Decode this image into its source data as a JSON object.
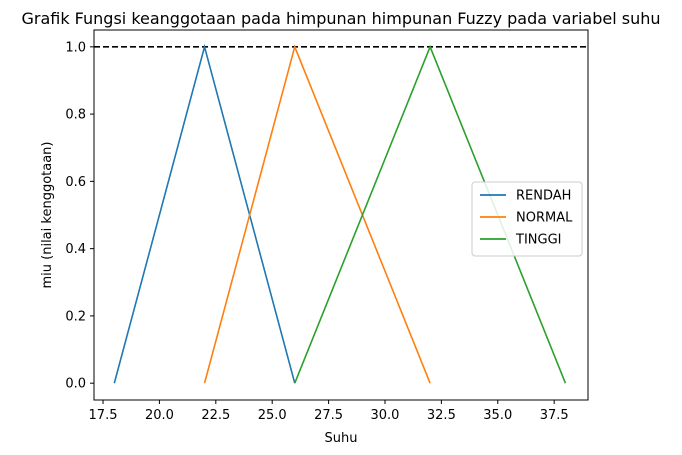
{
  "chart_data": {
    "type": "line",
    "title": "Grafik Fungsi keanggotaan pada himpunan himpunan Fuzzy pada variabel suhu",
    "xlabel": "Suhu",
    "ylabel": "miu (nilai kenggotaan)",
    "xlim": [
      17.1,
      39.0
    ],
    "ylim": [
      -0.05,
      1.05
    ],
    "xticks": [
      17.5,
      20.0,
      22.5,
      25.0,
      27.5,
      30.0,
      32.5,
      35.0,
      37.5
    ],
    "xtick_labels": [
      "17.5",
      "20.0",
      "22.5",
      "25.0",
      "27.5",
      "30.0",
      "32.5",
      "35.0",
      "37.5"
    ],
    "yticks": [
      0.0,
      0.2,
      0.4,
      0.6,
      0.8,
      1.0
    ],
    "ytick_labels": [
      "0.0",
      "0.2",
      "0.4",
      "0.6",
      "0.8",
      "1.0"
    ],
    "grid": false,
    "legend_position": "center-right",
    "reference_line": {
      "y": 1.0,
      "style": "dashed",
      "color": "#000000"
    },
    "series": [
      {
        "name": "RENDAH",
        "color": "#1f77b4",
        "x": [
          18,
          22,
          26
        ],
        "y": [
          0,
          1,
          0
        ]
      },
      {
        "name": "NORMAL",
        "color": "#ff7f0e",
        "x": [
          22,
          26,
          32
        ],
        "y": [
          0,
          1,
          0
        ]
      },
      {
        "name": "TINGGI",
        "color": "#2ca02c",
        "x": [
          26,
          32,
          38
        ],
        "y": [
          0,
          1,
          0
        ]
      }
    ]
  }
}
